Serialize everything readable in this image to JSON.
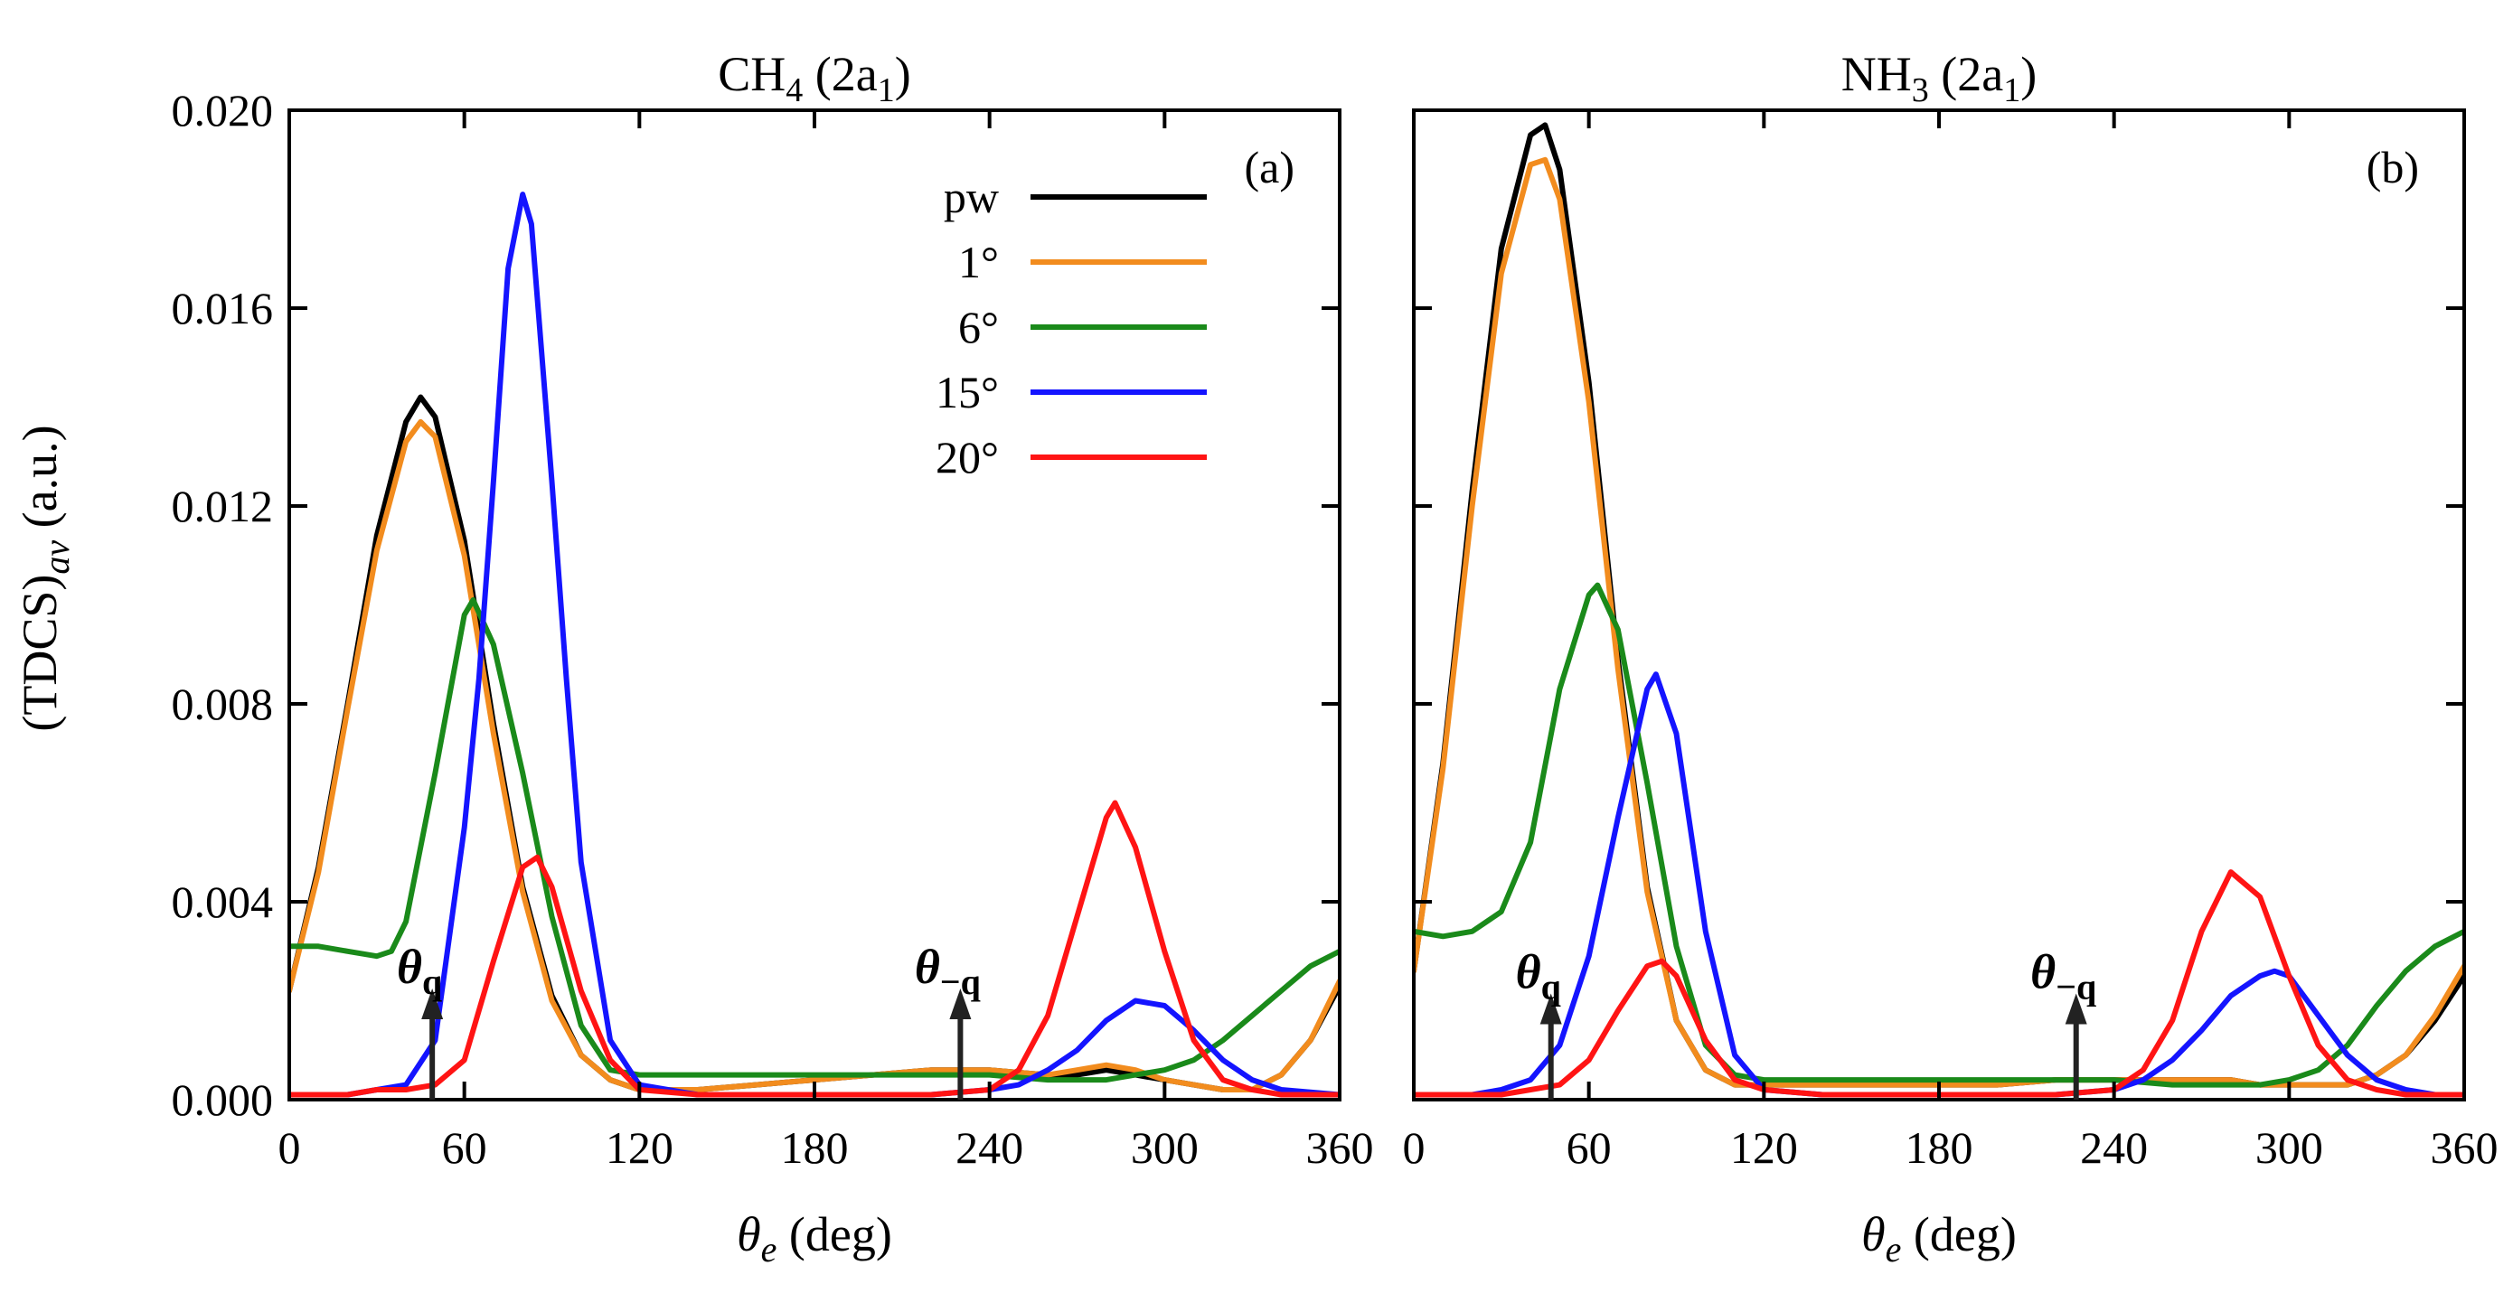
{
  "figure": {
    "ylabel": "(TDCS)",
    "ylabel_sub": "av",
    "ylabel_unit": " (a.u.)",
    "xlabel_symbol": "θ",
    "xlabel_sub": "e",
    "xlabel_unit": " (deg)"
  },
  "colors": {
    "pw": "#000000",
    "1°": "#f28c1e",
    "6°": "#1a8a1a",
    "15°": "#1414ff",
    "20°": "#ff1414"
  },
  "chart_data": [
    {
      "type": "line",
      "panel_letter": "(a)",
      "title_main": "CH",
      "title_sub": "4",
      "title_rest": " (2a",
      "title_sub2": "1",
      "title_close": ")",
      "xlim": [
        0,
        360
      ],
      "ylim": [
        0,
        0.02
      ],
      "xticks": [
        0,
        60,
        120,
        180,
        240,
        300,
        360
      ],
      "xtick_labels": [
        "0",
        "60",
        "120",
        "180",
        "240",
        "300",
        "360"
      ],
      "yticks": [
        0,
        0.004,
        0.008,
        0.012,
        0.016,
        0.02
      ],
      "ytick_labels": [
        "0.000",
        "0.004",
        "0.008",
        "0.012",
        "0.016",
        "0.020"
      ],
      "legend": [
        "pw",
        "1°",
        "6°",
        "15°",
        "20°"
      ],
      "annotations": [
        {
          "main": "θ",
          "sub": "q",
          "x": 49,
          "y_from": 0,
          "y_to": 0.0021
        },
        {
          "main": "θ",
          "sub": "−q",
          "x": 230,
          "y_from": 0,
          "y_to": 0.0021
        }
      ],
      "series": [
        {
          "name": "pw",
          "x": [
            0,
            10,
            20,
            30,
            40,
            45,
            50,
            60,
            70,
            80,
            90,
            100,
            110,
            120,
            140,
            160,
            180,
            200,
            220,
            240,
            260,
            270,
            280,
            290,
            300,
            310,
            320,
            330,
            340,
            350,
            360
          ],
          "y": [
            0.0022,
            0.0047,
            0.008,
            0.0114,
            0.0137,
            0.0142,
            0.0138,
            0.0113,
            0.0076,
            0.0043,
            0.0021,
            0.0009,
            0.0004,
            0.0002,
            0.0002,
            0.0003,
            0.0004,
            0.0005,
            0.0006,
            0.0006,
            0.0005,
            0.0005,
            0.0006,
            0.0005,
            0.0004,
            0.0003,
            0.0002,
            0.0002,
            0.0005,
            0.0012,
            0.0023
          ]
        },
        {
          "name": "1°",
          "x": [
            0,
            10,
            20,
            30,
            40,
            45,
            50,
            60,
            70,
            80,
            90,
            100,
            110,
            120,
            140,
            160,
            180,
            200,
            220,
            240,
            260,
            270,
            280,
            290,
            300,
            310,
            320,
            330,
            340,
            350,
            360
          ],
          "y": [
            0.0022,
            0.0046,
            0.0079,
            0.0111,
            0.0133,
            0.0137,
            0.0134,
            0.011,
            0.0074,
            0.0042,
            0.002,
            0.0009,
            0.0004,
            0.0002,
            0.0002,
            0.0003,
            0.0004,
            0.0005,
            0.0006,
            0.0006,
            0.0005,
            0.0006,
            0.0007,
            0.0006,
            0.0004,
            0.0003,
            0.0002,
            0.0002,
            0.0005,
            0.0012,
            0.0024
          ]
        },
        {
          "name": "6°",
          "x": [
            0,
            10,
            20,
            30,
            35,
            40,
            50,
            60,
            63,
            70,
            80,
            90,
            100,
            110,
            120,
            140,
            160,
            180,
            200,
            220,
            240,
            260,
            270,
            280,
            290,
            300,
            310,
            320,
            330,
            340,
            350,
            360
          ],
          "y": [
            0.0031,
            0.0031,
            0.003,
            0.0029,
            0.003,
            0.0036,
            0.0066,
            0.0098,
            0.0101,
            0.0092,
            0.0066,
            0.0037,
            0.0015,
            0.0006,
            0.0005,
            0.0005,
            0.0005,
            0.0005,
            0.0005,
            0.0005,
            0.0005,
            0.0004,
            0.0004,
            0.0004,
            0.0005,
            0.0006,
            0.0008,
            0.0012,
            0.0017,
            0.0022,
            0.0027,
            0.003
          ]
        },
        {
          "name": "15°",
          "x": [
            0,
            20,
            30,
            40,
            50,
            60,
            65,
            70,
            75,
            80,
            83,
            90,
            95,
            100,
            110,
            120,
            140,
            180,
            220,
            240,
            250,
            260,
            270,
            280,
            290,
            300,
            310,
            320,
            330,
            340,
            360
          ],
          "y": [
            0.0001,
            0.0001,
            0.0002,
            0.0003,
            0.0012,
            0.0055,
            0.0085,
            0.0125,
            0.0168,
            0.0183,
            0.0177,
            0.0125,
            0.0085,
            0.0048,
            0.0012,
            0.0003,
            0.0001,
            0.0001,
            0.0001,
            0.0002,
            0.0003,
            0.0006,
            0.001,
            0.0016,
            0.002,
            0.0019,
            0.0014,
            0.0008,
            0.0004,
            0.0002,
            0.0001
          ]
        },
        {
          "name": "20°",
          "x": [
            0,
            20,
            30,
            40,
            50,
            60,
            70,
            80,
            85,
            90,
            100,
            110,
            120,
            140,
            180,
            220,
            240,
            250,
            260,
            270,
            280,
            283,
            290,
            300,
            310,
            320,
            330,
            340,
            360
          ],
          "y": [
            0.0001,
            0.0001,
            0.0002,
            0.0002,
            0.0003,
            0.0008,
            0.0028,
            0.0047,
            0.0049,
            0.0043,
            0.0022,
            0.0008,
            0.0002,
            0.0001,
            0.0001,
            0.0001,
            0.0002,
            0.0006,
            0.0017,
            0.0037,
            0.0057,
            0.006,
            0.0051,
            0.003,
            0.0012,
            0.0004,
            0.0002,
            0.0001,
            0.0001
          ]
        }
      ]
    },
    {
      "type": "line",
      "panel_letter": "(b)",
      "title_main": "NH",
      "title_sub": "3",
      "title_rest": " (2a",
      "title_sub2": "1",
      "title_close": ")",
      "xlim": [
        0,
        360
      ],
      "ylim": [
        0,
        0.02
      ],
      "xticks": [
        0,
        60,
        120,
        180,
        240,
        300,
        360
      ],
      "xtick_labels": [
        "0",
        "60",
        "120",
        "180",
        "240",
        "300",
        "360"
      ],
      "yticks": [
        0,
        0.004,
        0.008,
        0.012,
        0.016,
        0.02
      ],
      "ytick_labels": [
        "",
        "",
        "",
        "",
        "",
        ""
      ],
      "legend": [],
      "annotations": [
        {
          "main": "θ",
          "sub": "q",
          "x": 47,
          "y_from": 0,
          "y_to": 0.002
        },
        {
          "main": "θ",
          "sub": "−q",
          "x": 227,
          "y_from": 0,
          "y_to": 0.002
        }
      ],
      "series": [
        {
          "name": "pw",
          "x": [
            0,
            10,
            20,
            30,
            40,
            45,
            50,
            60,
            70,
            80,
            90,
            100,
            110,
            120,
            140,
            160,
            180,
            200,
            220,
            240,
            260,
            280,
            290,
            300,
            310,
            320,
            330,
            340,
            350,
            360
          ],
          "y": [
            0.0026,
            0.0068,
            0.0123,
            0.0172,
            0.0195,
            0.0197,
            0.0188,
            0.0145,
            0.0089,
            0.0043,
            0.0016,
            0.0006,
            0.0003,
            0.0003,
            0.0003,
            0.0003,
            0.0003,
            0.0003,
            0.0004,
            0.0004,
            0.0004,
            0.0004,
            0.0003,
            0.0003,
            0.0003,
            0.0003,
            0.0005,
            0.0009,
            0.0016,
            0.0025
          ]
        },
        {
          "name": "1°",
          "x": [
            0,
            10,
            20,
            30,
            40,
            45,
            50,
            60,
            70,
            80,
            90,
            100,
            110,
            120,
            140,
            160,
            180,
            200,
            220,
            240,
            260,
            280,
            290,
            300,
            310,
            320,
            330,
            340,
            350,
            360
          ],
          "y": [
            0.0026,
            0.0067,
            0.012,
            0.0167,
            0.0189,
            0.019,
            0.0182,
            0.0141,
            0.0087,
            0.0042,
            0.0016,
            0.0006,
            0.0003,
            0.0003,
            0.0003,
            0.0003,
            0.0003,
            0.0003,
            0.0004,
            0.0004,
            0.0004,
            0.0004,
            0.0003,
            0.0003,
            0.0003,
            0.0003,
            0.0005,
            0.0009,
            0.0017,
            0.0027
          ]
        },
        {
          "name": "6°",
          "x": [
            0,
            10,
            20,
            30,
            40,
            50,
            60,
            63,
            70,
            80,
            90,
            100,
            110,
            120,
            140,
            160,
            180,
            200,
            220,
            240,
            260,
            280,
            290,
            300,
            310,
            320,
            330,
            340,
            350,
            360
          ],
          "y": [
            0.0034,
            0.0033,
            0.0034,
            0.0038,
            0.0052,
            0.0083,
            0.0102,
            0.0104,
            0.0095,
            0.0064,
            0.0031,
            0.0011,
            0.0005,
            0.0004,
            0.0004,
            0.0004,
            0.0004,
            0.0004,
            0.0004,
            0.0004,
            0.0003,
            0.0003,
            0.0003,
            0.0004,
            0.0006,
            0.0011,
            0.0019,
            0.0026,
            0.0031,
            0.0034
          ]
        },
        {
          "name": "15°",
          "x": [
            0,
            20,
            30,
            40,
            50,
            60,
            70,
            80,
            83,
            90,
            100,
            110,
            120,
            140,
            180,
            220,
            240,
            250,
            260,
            270,
            280,
            290,
            295,
            300,
            310,
            320,
            330,
            340,
            350,
            360
          ],
          "y": [
            0.0001,
            0.0001,
            0.0002,
            0.0004,
            0.0011,
            0.0029,
            0.0057,
            0.0083,
            0.0086,
            0.0074,
            0.0034,
            0.0009,
            0.0002,
            0.0001,
            0.0001,
            0.0001,
            0.0002,
            0.0004,
            0.0008,
            0.0014,
            0.0021,
            0.0025,
            0.0026,
            0.0025,
            0.0017,
            0.0009,
            0.0004,
            0.0002,
            0.0001,
            0.0001
          ]
        },
        {
          "name": "20°",
          "x": [
            0,
            30,
            40,
            50,
            60,
            70,
            80,
            85,
            90,
            100,
            110,
            120,
            140,
            180,
            220,
            240,
            250,
            260,
            270,
            280,
            290,
            300,
            310,
            320,
            330,
            340,
            360
          ],
          "y": [
            0.0001,
            0.0001,
            0.0002,
            0.0003,
            0.0008,
            0.0018,
            0.0027,
            0.0028,
            0.0025,
            0.0012,
            0.0004,
            0.0002,
            0.0001,
            0.0001,
            0.0001,
            0.0002,
            0.0006,
            0.0016,
            0.0034,
            0.0046,
            0.0041,
            0.0025,
            0.0011,
            0.0004,
            0.0002,
            0.0001,
            0.0001
          ]
        }
      ]
    }
  ]
}
